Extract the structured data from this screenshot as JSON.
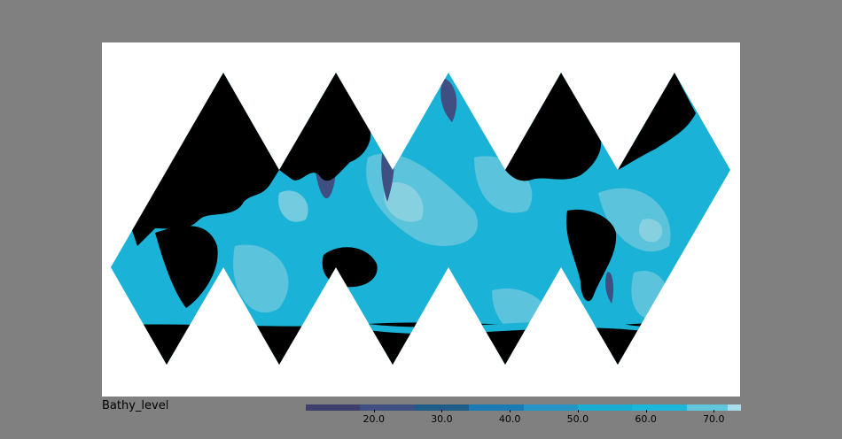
{
  "map": {
    "projection": "icosahedral-unfolded",
    "land_color": "#000000",
    "ocean_base_color": "#1ab2d6"
  },
  "legend": {
    "title": "Bathy_level",
    "colorbar": {
      "range": [
        10,
        74
      ],
      "segments": [
        {
          "from": 10,
          "to": 18,
          "color": "#3f3f6e"
        },
        {
          "from": 18,
          "to": 26,
          "color": "#404f82"
        },
        {
          "from": 26,
          "to": 34,
          "color": "#1f5d88"
        },
        {
          "from": 34,
          "to": 42,
          "color": "#1a7cb4"
        },
        {
          "from": 42,
          "to": 50,
          "color": "#2496c6"
        },
        {
          "from": 50,
          "to": 58,
          "color": "#17aed2"
        },
        {
          "from": 58,
          "to": 66,
          "color": "#1bb7da"
        },
        {
          "from": 66,
          "to": 72,
          "color": "#5fc6de"
        },
        {
          "from": 72,
          "to": 74,
          "color": "#a9dde9"
        }
      ],
      "ticks": [
        {
          "value": 20,
          "label": "20.0"
        },
        {
          "value": 30,
          "label": "30.0"
        },
        {
          "value": 40,
          "label": "40.0"
        },
        {
          "value": 50,
          "label": "50.0"
        },
        {
          "value": 60,
          "label": "60.0"
        },
        {
          "value": 70,
          "label": "70.0"
        }
      ]
    }
  }
}
